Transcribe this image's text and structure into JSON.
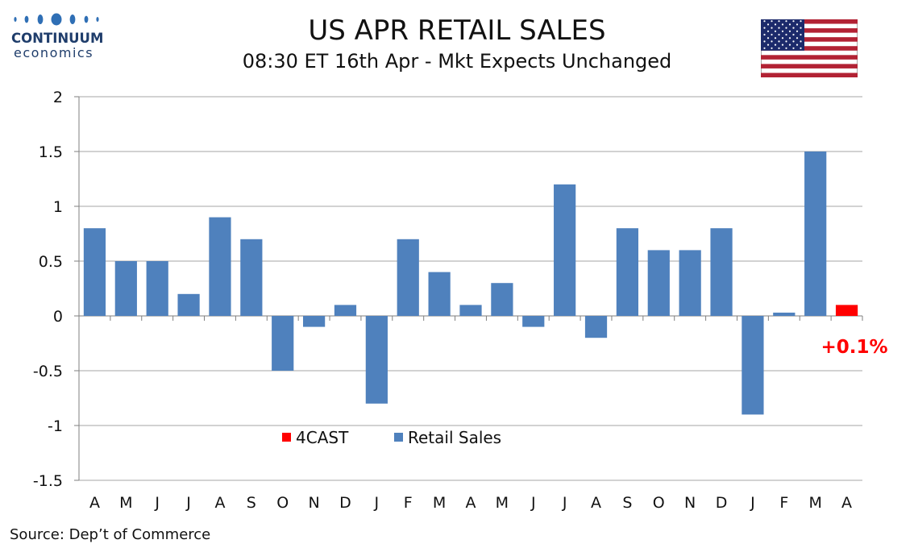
{
  "title": "US APR RETAIL SALES",
  "subtitle": "08:30 ET 16th Apr - Mkt Expects Unchanged",
  "source": "Source: Dep’t of Commerce",
  "logo": {
    "name": "CONTINUUM",
    "sub": "economics"
  },
  "flag_icon": "us-flag-icon",
  "colors": {
    "retail": "#4f81bd",
    "forecast": "#ff0000",
    "grid": "#a6a6a6",
    "annotation": "#ff0000"
  },
  "chart_data": {
    "type": "bar",
    "categories": [
      "A",
      "M",
      "J",
      "J",
      "A",
      "S",
      "O",
      "N",
      "D",
      "J",
      "F",
      "M",
      "A",
      "M",
      "J",
      "J",
      "A",
      "S",
      "O",
      "N",
      "D",
      "J",
      "F",
      "M",
      "A"
    ],
    "series": [
      {
        "name": "Retail Sales",
        "values": [
          0.8,
          0.5,
          0.5,
          0.2,
          0.9,
          0.7,
          -0.5,
          -0.1,
          0.1,
          -0.8,
          0.7,
          0.4,
          0.1,
          0.3,
          -0.1,
          1.2,
          -0.2,
          0.8,
          0.6,
          0.6,
          0.8,
          -0.9,
          0.03,
          1.5,
          null
        ]
      },
      {
        "name": "4CAST",
        "values": [
          null,
          null,
          null,
          null,
          null,
          null,
          null,
          null,
          null,
          null,
          null,
          null,
          null,
          null,
          null,
          null,
          null,
          null,
          null,
          null,
          null,
          null,
          null,
          null,
          0.1
        ]
      }
    ],
    "ylim": [
      -1.5,
      2
    ],
    "yticks": [
      "2",
      "1.5",
      "1",
      "0.5",
      "0",
      "-0.5",
      "-1",
      "-1.5"
    ],
    "ytick_values": [
      2,
      1.5,
      1,
      0.5,
      0,
      -0.5,
      -1,
      -1.5
    ],
    "legend": [
      "4CAST",
      "Retail Sales"
    ],
    "legend_position": "bottom-center-inside",
    "annotation": "+0.1%",
    "grid": true
  }
}
